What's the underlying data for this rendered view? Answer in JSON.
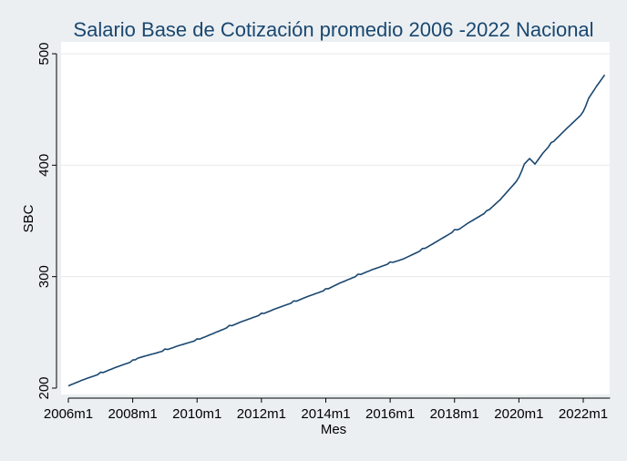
{
  "chart_data": {
    "type": "line",
    "title": "Salario Base de Cotización promedio 2006 -2022 Nacional",
    "xlabel": "Mes",
    "ylabel": "SBC",
    "x_tick_labels": [
      "2006m1",
      "2008m1",
      "2010m1",
      "2012m1",
      "2014m1",
      "2016m1",
      "2018m1",
      "2020m1",
      "2022m1"
    ],
    "y_ticks": [
      200,
      300,
      400,
      500
    ],
    "ylim": [
      197,
      510
    ],
    "xlim": [
      "2006m1",
      "2022m11"
    ],
    "grid": true,
    "legend": "none",
    "colors": {
      "line": "#1a476f",
      "plot_background": "#ffffff",
      "outer_background": "#ebeff2",
      "title": "#1a476f",
      "grid": "#eaeaea"
    },
    "series": [
      {
        "x": [
          "2006m1",
          "2006m6",
          "2007m1",
          "2007m6",
          "2008m1",
          "2008m3",
          "2008m12",
          "2009m6",
          "2010m1",
          "2010m6",
          "2011m1",
          "2011m6",
          "2012m1",
          "2012m6",
          "2013m1",
          "2013m6",
          "2014m1",
          "2014m6",
          "2015m1",
          "2015m6",
          "2016m1",
          "2016m6",
          "2017m1",
          "2017m6",
          "2018m1",
          "2018m3",
          "2018m6",
          "2019m1",
          "2019m6",
          "2020m1",
          "2020m3",
          "2020m5",
          "2020m7",
          "2020m10",
          "2021m1",
          "2021m6",
          "2022m1",
          "2022m3",
          "2022m6",
          "2022m9"
        ],
        "values": [
          202,
          207,
          213,
          218,
          224,
          227,
          233,
          238,
          243,
          248,
          255,
          260,
          266,
          271,
          277,
          282,
          288,
          294,
          301,
          306,
          312,
          316,
          324,
          331,
          341,
          343,
          348,
          358,
          369,
          388,
          401,
          406,
          401,
          411,
          419,
          431,
          447,
          460,
          471,
          481
        ]
      }
    ]
  }
}
